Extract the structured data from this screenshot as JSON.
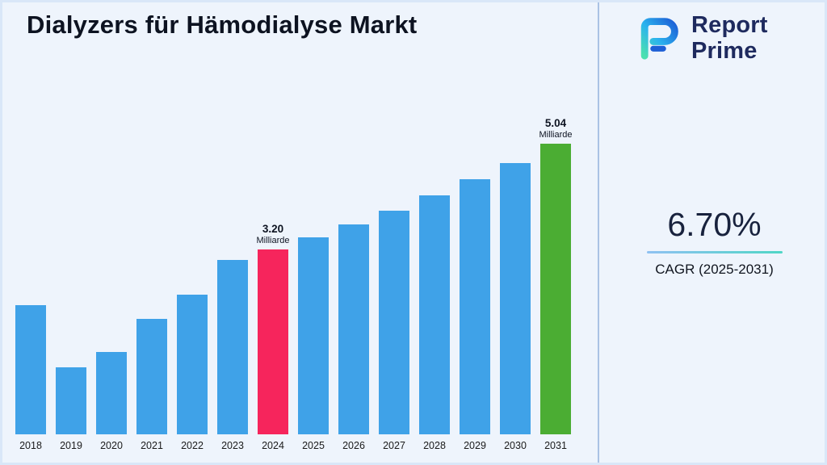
{
  "header": {
    "title": "Dialyzers für Hämodialyse Markt"
  },
  "logo": {
    "line1": "Report",
    "line2": "Prime",
    "icon": "report-prime-mark"
  },
  "cagr": {
    "value": "6.70%",
    "label": "CAGR (2025-2031)"
  },
  "chart_data": {
    "type": "bar",
    "title": "Dialyzers für Hämodialyse Markt",
    "xlabel": "",
    "ylabel": "",
    "unit": "Milliarde",
    "categories": [
      "2018",
      "2019",
      "2020",
      "2021",
      "2022",
      "2023",
      "2024",
      "2025",
      "2026",
      "2027",
      "2028",
      "2029",
      "2030",
      "2031"
    ],
    "values": [
      2.24,
      1.16,
      1.43,
      2.0,
      2.42,
      3.02,
      3.2,
      3.41,
      3.64,
      3.88,
      4.14,
      4.42,
      4.71,
      5.04
    ],
    "ylim": [
      0,
      5.5
    ],
    "grid": false,
    "legend": "none",
    "data_labels": [
      {
        "category": "2024",
        "value_text": "3.20",
        "unit": "Milliarde"
      },
      {
        "category": "2031",
        "value_text": "5.04",
        "unit": "Milliarde"
      }
    ],
    "colors": {
      "default": "#3fa2e8",
      "2024": "#f6255c",
      "2031": "#4bad33"
    }
  },
  "theme": {
    "background": "#eef4fc",
    "border": "#d9e7f8",
    "divider": "#aac2e4",
    "text": "#0d1321",
    "accent_line_start": "#8fc1f2",
    "accent_line_end": "#4fd6c6"
  }
}
